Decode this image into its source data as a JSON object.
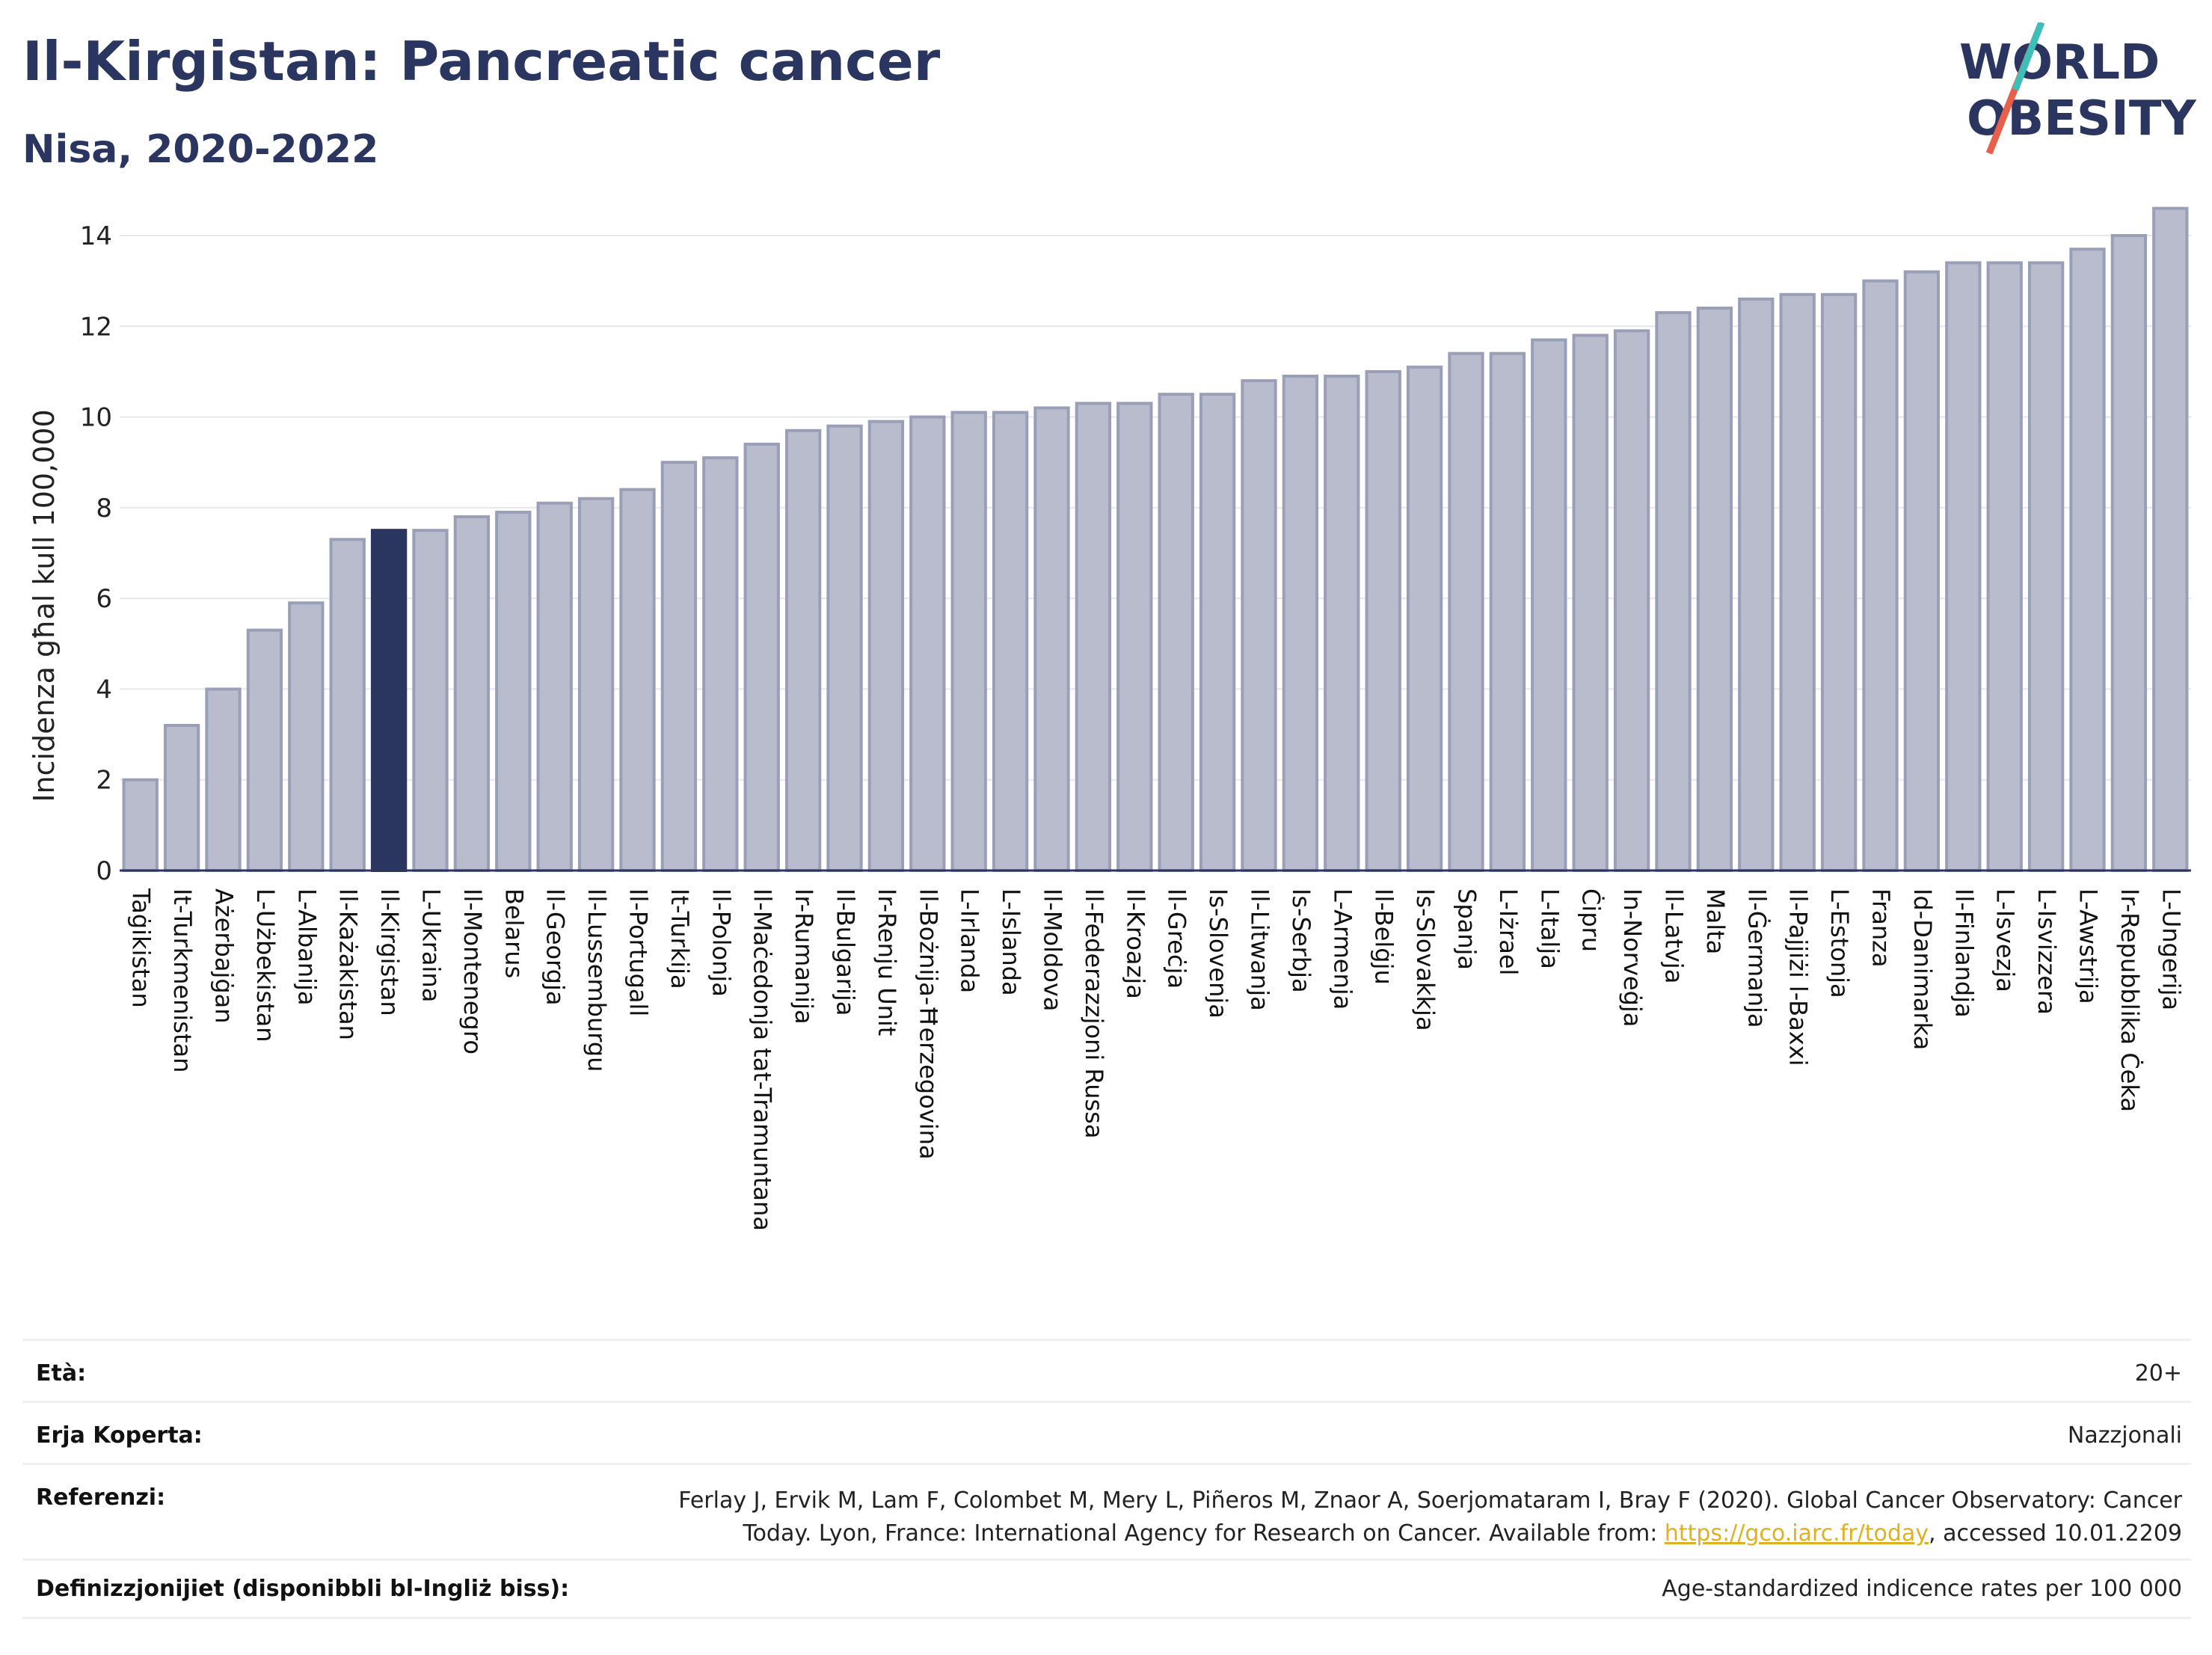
{
  "header": {
    "title": "Il-Kirgistan: Pancreatic cancer",
    "subtitle": "Nisa, 2020-2022",
    "logo_line1": "WORLD",
    "logo_line2": "OBESITY"
  },
  "colors": {
    "bar": "#b9bccd",
    "bar_border": "#9a9fb8",
    "highlight": "#2a3560",
    "logo_teal": "#3bbfb8",
    "logo_red": "#e8604c"
  },
  "chart_data": {
    "type": "bar",
    "ylabel": "Incidenza għal kull 100,000",
    "ylim": [
      0,
      15
    ],
    "yticks": [
      0,
      2,
      4,
      6,
      8,
      10,
      12,
      14
    ],
    "grid": true,
    "highlight": "Il-Kirgistan",
    "categories": [
      "Taġikistan",
      "It-Turkmenistan",
      "Ażerbajġan",
      "L-Użbekistan",
      "L-Albanija",
      "Il-Każakistan",
      "Il-Kirgistan",
      "L-Ukraina",
      "Il-Montenegro",
      "Belarus",
      "Il-Georgja",
      "Il-Lussemburgu",
      "Il-Portugall",
      "It-Turkija",
      "Il-Polonja",
      "Il-Maċedonja tat-Tramuntana",
      "Ir-Rumanija",
      "Il-Bulgarija",
      "Ir-Renju Unit",
      "Il-Bożnija-Ħerzegovina",
      "L-Irlanda",
      "L-Islanda",
      "Il-Moldova",
      "Il-Federazzjoni Russa",
      "Il-Kroazja",
      "Il-Greċja",
      "Is-Slovenja",
      "Il-Litwanja",
      "Is-Serbja",
      "L-Armenja",
      "Il-Belġju",
      "Is-Slovakkja",
      "Spanja",
      "L-Iżrael",
      "L-Italja",
      "Ċipru",
      "In-Norveġja",
      "Il-Latvja",
      "Malta",
      "Il-Ġermanja",
      "Il-Pajjiżi l-Baxxi",
      "L-Estonja",
      "Franza",
      "Id-Danimarka",
      "Il-Finlandja",
      "L-Isvezja",
      "L-Isvizzera",
      "L-Awstrija",
      "Ir-Repubblika Ċeka",
      "L-Ungerija"
    ],
    "values": [
      2.0,
      3.2,
      4.0,
      5.3,
      5.9,
      7.3,
      7.5,
      7.5,
      7.8,
      7.9,
      8.1,
      8.2,
      8.4,
      9.0,
      9.1,
      9.4,
      9.7,
      9.8,
      9.9,
      10.0,
      10.1,
      10.1,
      10.2,
      10.3,
      10.3,
      10.5,
      10.5,
      10.8,
      10.9,
      10.9,
      11.0,
      11.1,
      11.4,
      11.4,
      11.7,
      11.8,
      11.9,
      12.3,
      12.4,
      12.6,
      12.7,
      12.7,
      13.0,
      13.2,
      13.4,
      13.4,
      13.4,
      13.7,
      14.0,
      14.6
    ]
  },
  "info": {
    "age_label": "Età:",
    "age_value": "20+",
    "coverage_label": "Erja Koperta:",
    "coverage_value": "Nazzjonali",
    "ref_label": "Referenzi:",
    "ref_text1": "Ferlay J, Ervik M, Lam F, Colombet M, Mery L, Piñeros M, Znaor A, Soerjomataram I, Bray F (2020). Global Cancer Observatory: Cancer",
    "ref_text2": "Today. Lyon, France: International Agency for Research on Cancer. Available from: ",
    "ref_link": "https://gco.iarc.fr/today",
    "ref_text3": ", accessed 10.01.2209",
    "def_label": "Definizzjonijiet (disponibbli bl-Ingliż biss):",
    "def_value": "Age-standardized indicence rates per 100 000"
  }
}
